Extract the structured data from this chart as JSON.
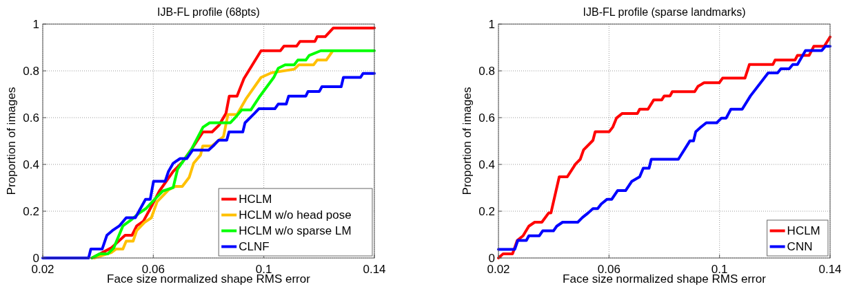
{
  "chart_data": [
    {
      "type": "line",
      "title": "IJB-FL profile (68pts)",
      "xlabel": "Face size normalized shape RMS error",
      "ylabel": "Proportion of images",
      "xlim": [
        0.02,
        0.14
      ],
      "xticks": [
        0.02,
        0.06,
        0.1,
        0.14
      ],
      "ylim": [
        0,
        1
      ],
      "yticks": [
        0,
        0.2,
        0.4,
        0.6,
        0.8,
        1
      ],
      "grid": true,
      "legend": "bottom right",
      "series": [
        {
          "name": "HCLM",
          "color": "#ff0000",
          "x": [
            0.0378,
            0.0448,
            0.0498,
            0.0523,
            0.054,
            0.0564,
            0.0589,
            0.0622,
            0.0672,
            0.0705,
            0.0738,
            0.078,
            0.0813,
            0.0838,
            0.0863,
            0.0875,
            0.0903,
            0.0928,
            0.099,
            0.106,
            0.1073,
            0.1119,
            0.1131,
            0.1185,
            0.1193,
            0.1222,
            0.1251,
            0.14
          ],
          "values": [
            0,
            0.043,
            0.097,
            0.097,
            0.137,
            0.157,
            0.211,
            0.286,
            0.37,
            0.41,
            0.464,
            0.539,
            0.539,
            0.568,
            0.618,
            0.692,
            0.692,
            0.767,
            0.886,
            0.886,
            0.906,
            0.906,
            0.926,
            0.926,
            0.946,
            0.946,
            0.983,
            0.983
          ]
        },
        {
          "name": "HCLM w/o head pose",
          "color": "#ffc000",
          "x": [
            0.0386,
            0.0448,
            0.0465,
            0.049,
            0.0502,
            0.0527,
            0.054,
            0.0568,
            0.0593,
            0.0614,
            0.0655,
            0.068,
            0.0705,
            0.073,
            0.0746,
            0.0771,
            0.0779,
            0.0812,
            0.0854,
            0.087,
            0.0903,
            0.0937,
            0.099,
            0.1028,
            0.111,
            0.1127,
            0.118,
            0.1193,
            0.1226,
            0.1247
          ],
          "values": [
            0,
            0.023,
            0.038,
            0.038,
            0.072,
            0.072,
            0.117,
            0.152,
            0.172,
            0.241,
            0.291,
            0.306,
            0.306,
            0.345,
            0.405,
            0.44,
            0.479,
            0.479,
            0.519,
            0.613,
            0.613,
            0.683,
            0.772,
            0.792,
            0.807,
            0.826,
            0.826,
            0.846,
            0.846,
            0.881
          ]
        },
        {
          "name": "HCLM w/o sparse LM",
          "color": "#00ff00",
          "x": [
            0.0378,
            0.0407,
            0.0436,
            0.0457,
            0.049,
            0.0519,
            0.0548,
            0.0573,
            0.0597,
            0.0634,
            0.0672,
            0.0688,
            0.0738,
            0.078,
            0.0804,
            0.0879,
            0.0895,
            0.092,
            0.0953,
            0.0986,
            0.1036,
            0.1052,
            0.1077,
            0.111,
            0.1123,
            0.1152,
            0.1164,
            0.1206,
            0.14
          ],
          "values": [
            0,
            0.018,
            0.018,
            0.043,
            0.137,
            0.162,
            0.191,
            0.211,
            0.241,
            0.286,
            0.301,
            0.38,
            0.464,
            0.559,
            0.578,
            0.578,
            0.598,
            0.633,
            0.633,
            0.692,
            0.772,
            0.811,
            0.826,
            0.826,
            0.846,
            0.846,
            0.866,
            0.886,
            0.886
          ]
        },
        {
          "name": "CLNF",
          "color": "#0000ff",
          "x": [
            0.02,
            0.0366,
            0.0374,
            0.0415,
            0.0432,
            0.0452,
            0.0477,
            0.0502,
            0.0535,
            0.0572,
            0.0589,
            0.0601,
            0.0643,
            0.0655,
            0.0672,
            0.0697,
            0.0721,
            0.0742,
            0.08,
            0.0821,
            0.0837,
            0.0866,
            0.0874,
            0.0924,
            0.0932,
            0.0966,
            0.0982,
            0.104,
            0.1052,
            0.1081,
            0.109,
            0.1152,
            0.116,
            0.1201,
            0.121,
            0.128,
            0.1288,
            0.135,
            0.1359,
            0.14
          ],
          "values": [
            0,
            0,
            0.038,
            0.038,
            0.097,
            0.117,
            0.137,
            0.172,
            0.172,
            0.251,
            0.251,
            0.328,
            0.328,
            0.37,
            0.405,
            0.425,
            0.425,
            0.461,
            0.461,
            0.484,
            0.504,
            0.504,
            0.539,
            0.539,
            0.578,
            0.618,
            0.638,
            0.638,
            0.658,
            0.658,
            0.692,
            0.692,
            0.712,
            0.712,
            0.732,
            0.732,
            0.772,
            0.772,
            0.789,
            0.789
          ]
        }
      ]
    },
    {
      "type": "line",
      "title": "IJB-FL profile (sparse landmarks)",
      "xlabel": "Face size normalized shape RMS error",
      "ylabel": "Proportion of images",
      "xlim": [
        0.02,
        0.14
      ],
      "xticks": [
        0.02,
        0.06,
        0.1,
        0.14
      ],
      "ylim": [
        0,
        1
      ],
      "yticks": [
        0,
        0.2,
        0.4,
        0.6,
        0.8,
        1
      ],
      "grid": true,
      "legend": "bottom right",
      "series": [
        {
          "name": "HCLM",
          "color": "#ff0000",
          "x": [
            0.02,
            0.0217,
            0.0251,
            0.0268,
            0.0289,
            0.031,
            0.0331,
            0.0357,
            0.0382,
            0.039,
            0.042,
            0.0449,
            0.0479,
            0.0496,
            0.0508,
            0.0542,
            0.055,
            0.0601,
            0.0614,
            0.0627,
            0.0648,
            0.0703,
            0.0711,
            0.0741,
            0.0762,
            0.0791,
            0.08,
            0.0821,
            0.0829,
            0.091,
            0.0922,
            0.0944,
            0.0999,
            0.1011,
            0.1092,
            0.1108,
            0.1193,
            0.1201,
            0.1273,
            0.1282,
            0.1324,
            0.1341,
            0.1379,
            0.14
          ],
          "values": [
            0,
            0.018,
            0.018,
            0.075,
            0.095,
            0.136,
            0.153,
            0.153,
            0.193,
            0.193,
            0.347,
            0.347,
            0.402,
            0.422,
            0.462,
            0.503,
            0.54,
            0.54,
            0.56,
            0.598,
            0.618,
            0.618,
            0.636,
            0.636,
            0.676,
            0.676,
            0.693,
            0.693,
            0.711,
            0.711,
            0.734,
            0.749,
            0.749,
            0.769,
            0.769,
            0.827,
            0.827,
            0.846,
            0.846,
            0.866,
            0.866,
            0.905,
            0.905,
            0.945
          ]
        },
        {
          "name": "CNN",
          "color": "#0000ff",
          "x": [
            0.02,
            0.0259,
            0.027,
            0.0301,
            0.031,
            0.0348,
            0.036,
            0.0399,
            0.0411,
            0.0432,
            0.0487,
            0.0504,
            0.0525,
            0.0542,
            0.0559,
            0.0572,
            0.0593,
            0.061,
            0.0631,
            0.066,
            0.0682,
            0.0711,
            0.0724,
            0.0745,
            0.0753,
            0.0851,
            0.0893,
            0.0906,
            0.0914,
            0.0931,
            0.0952,
            0.099,
            0.1007,
            0.1024,
            0.1041,
            0.1082,
            0.1112,
            0.1176,
            0.121,
            0.1222,
            0.1252,
            0.1265,
            0.1282,
            0.1311,
            0.137,
            0.1383,
            0.14
          ],
          "values": [
            0.037,
            0.037,
            0.075,
            0.075,
            0.095,
            0.095,
            0.116,
            0.116,
            0.136,
            0.153,
            0.153,
            0.173,
            0.193,
            0.211,
            0.211,
            0.231,
            0.251,
            0.251,
            0.288,
            0.288,
            0.327,
            0.347,
            0.384,
            0.384,
            0.422,
            0.422,
            0.501,
            0.501,
            0.54,
            0.558,
            0.578,
            0.578,
            0.598,
            0.598,
            0.636,
            0.636,
            0.693,
            0.791,
            0.791,
            0.809,
            0.809,
            0.827,
            0.827,
            0.887,
            0.887,
            0.905,
            0.905
          ]
        }
      ]
    }
  ]
}
